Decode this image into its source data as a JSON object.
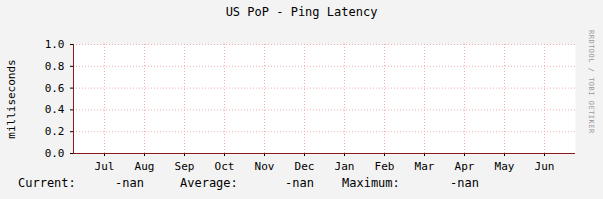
{
  "chart_data": {
    "type": "line",
    "title": "US PoP - Ping Latency",
    "y_label": "milliseconds",
    "categories": [
      "Jul",
      "Aug",
      "Sep",
      "Oct",
      "Nov",
      "Dec",
      "Jan",
      "Feb",
      "Mar",
      "Apr",
      "May",
      "Jun"
    ],
    "values": [
      null,
      null,
      null,
      null,
      null,
      null,
      null,
      null,
      null,
      null,
      null,
      null
    ],
    "ylim": [
      0,
      1
    ],
    "yticks": [
      {
        "value": 0,
        "label": "0.0"
      },
      {
        "value": 0.2,
        "label": "0.2"
      },
      {
        "value": 0.4,
        "label": "0.4"
      },
      {
        "value": 0.6,
        "label": "0.6"
      },
      {
        "value": 0.8,
        "label": "0.8"
      },
      {
        "value": 1,
        "label": "1.0"
      }
    ],
    "grid": true,
    "stats": [
      {
        "label": "Current:",
        "value": "-nan"
      },
      {
        "label": "Average:",
        "value": "-nan"
      },
      {
        "label": "Maximum:",
        "value": "-nan"
      }
    ],
    "annotations": [
      "RRDTOOL / TOBI OETIKER"
    ]
  }
}
